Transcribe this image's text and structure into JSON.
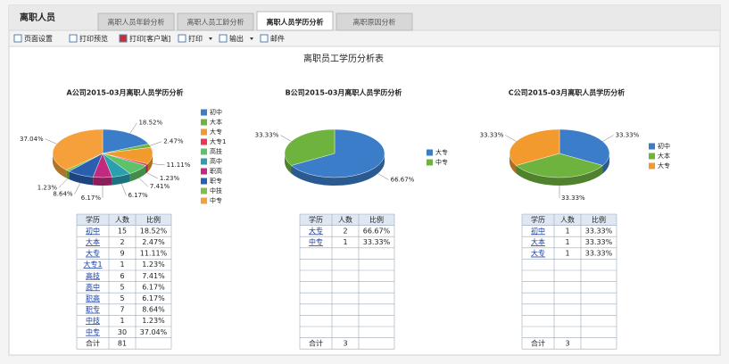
{
  "header": {
    "title": "离职人员"
  },
  "tabs": [
    {
      "label": "离职人员年龄分析",
      "active": false
    },
    {
      "label": "离职人员工龄分析",
      "active": false
    },
    {
      "label": "离职人员学历分析",
      "active": true
    },
    {
      "label": "离职原因分析",
      "active": false
    }
  ],
  "toolbar": [
    {
      "label": "页面设置",
      "dropdown": false
    },
    {
      "label": "打印预览",
      "dropdown": false
    },
    {
      "label": "打印[客户端]",
      "dropdown": false
    },
    {
      "label": "打印",
      "dropdown": true
    },
    {
      "label": "输出",
      "dropdown": true
    },
    {
      "label": "邮件",
      "dropdown": false
    }
  ],
  "report_title": "离职员工学历分析表",
  "chart_data": [
    {
      "type": "pie",
      "title": "A公司2015-03月离职人员学历分析",
      "categories": [
        "初中",
        "大本",
        "大专",
        "大专1",
        "高技",
        "高中",
        "职高",
        "职专",
        "中技",
        "中专"
      ],
      "values": [
        18.52,
        2.47,
        11.11,
        1.23,
        7.41,
        6.17,
        6.17,
        8.64,
        1.23,
        37.04
      ],
      "value_labels": [
        "18.52%",
        "2.47%",
        "11.11%",
        "1.23%",
        "7.41%",
        "6.17%",
        "6.17%",
        "8.64%",
        "1.23%",
        "37.04%"
      ],
      "colors": [
        "#3b7dc8",
        "#6fb33f",
        "#f39a2f",
        "#e8365d",
        "#5ec26a",
        "#2a9fb0",
        "#c2297f",
        "#2a5fb0",
        "#7cc04a",
        "#f5a03a"
      ]
    },
    {
      "type": "pie",
      "title": "B公司2015-03月离职人员学历分析",
      "categories": [
        "大专",
        "中专"
      ],
      "values": [
        66.67,
        33.33
      ],
      "value_labels": [
        "66.67%",
        "33.33%"
      ],
      "colors": [
        "#3b7dc8",
        "#6fb33f"
      ]
    },
    {
      "type": "pie",
      "title": "C公司2015-03月离职人员学历分析",
      "categories": [
        "初中",
        "大本",
        "大专"
      ],
      "values": [
        33.33,
        33.33,
        33.33
      ],
      "value_labels": [
        "33.33%",
        "33.33%",
        "33.33%"
      ],
      "colors": [
        "#3b7dc8",
        "#6fb33f",
        "#f39a2f"
      ]
    }
  ],
  "tables": [
    {
      "columns": [
        "学历",
        "人数",
        "比例"
      ],
      "rows": [
        [
          "初中",
          15,
          "18.52%"
        ],
        [
          "大本",
          2,
          "2.47%"
        ],
        [
          "大专",
          9,
          "11.11%"
        ],
        [
          "大专1",
          1,
          "1.23%"
        ],
        [
          "高技",
          6,
          "7.41%"
        ],
        [
          "高中",
          5,
          "6.17%"
        ],
        [
          "职高",
          5,
          "6.17%"
        ],
        [
          "职专",
          7,
          "8.64%"
        ],
        [
          "中技",
          1,
          "1.23%"
        ],
        [
          "中专",
          30,
          "37.04%"
        ]
      ],
      "total": [
        "合计",
        81
      ]
    },
    {
      "columns": [
        "学历",
        "人数",
        "比例"
      ],
      "rows": [
        [
          "大专",
          2,
          "66.67%"
        ],
        [
          "中专",
          1,
          "33.33%"
        ]
      ],
      "total": [
        "合计",
        3
      ]
    },
    {
      "columns": [
        "学历",
        "人数",
        "比例"
      ],
      "rows": [
        [
          "初中",
          1,
          "33.33%"
        ],
        [
          "大本",
          1,
          "33.33%"
        ],
        [
          "大专",
          1,
          "33.33%"
        ]
      ],
      "total": [
        "合计",
        3
      ]
    }
  ]
}
